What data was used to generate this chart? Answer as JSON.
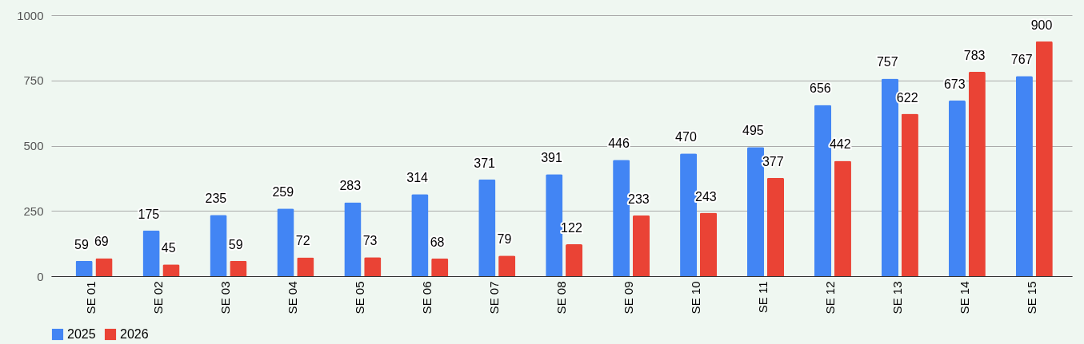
{
  "chart_data": {
    "type": "bar",
    "categories": [
      "SE 01",
      "SE 02",
      "SE 03",
      "SE 04",
      "SE 05",
      "SE 06",
      "SE 07",
      "SE 08",
      "SE 09",
      "SE 10",
      "SE 11",
      "SE 12",
      "SE 13",
      "SE 14",
      "SE 15"
    ],
    "series": [
      {
        "name": "2025",
        "color": "#4285f4",
        "values": [
          59,
          175,
          235,
          259,
          283,
          314,
          371,
          391,
          446,
          470,
          495,
          656,
          757,
          673,
          767
        ]
      },
      {
        "name": "2026",
        "color": "#ea4335",
        "values": [
          69,
          45,
          59,
          72,
          73,
          68,
          79,
          122,
          233,
          243,
          377,
          442,
          622,
          783,
          900
        ]
      }
    ],
    "ylim": [
      0,
      1000
    ],
    "yticks": [
      0,
      250,
      500,
      750,
      1000
    ],
    "grid": "y",
    "legend": "bottom",
    "data_labels": true
  }
}
